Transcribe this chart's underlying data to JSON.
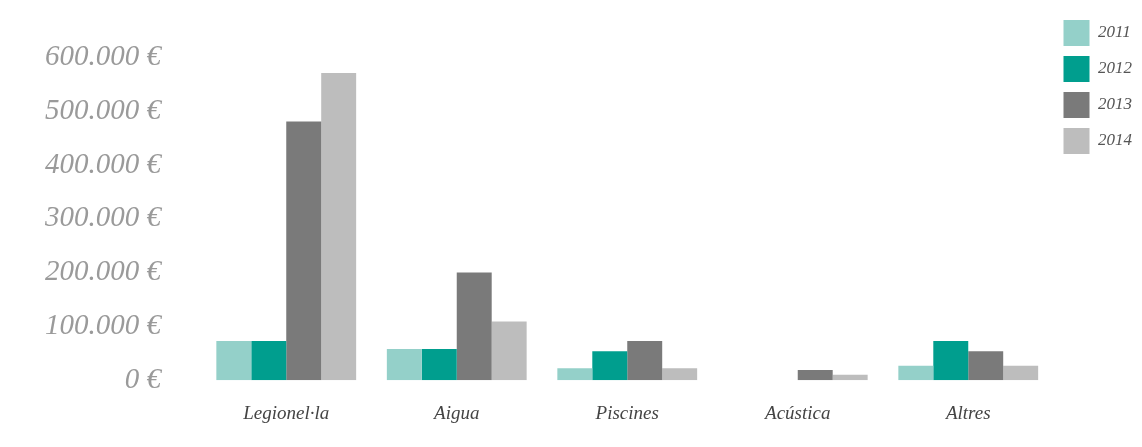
{
  "chart_data": {
    "type": "bar",
    "categories": [
      "Legionel·la",
      "Aigua",
      "Piscines",
      "Acústica",
      "Altres"
    ],
    "series": [
      {
        "name": "2011",
        "color": "#94d0c9",
        "values": [
          73000,
          58000,
          22000,
          0,
          27000
        ]
      },
      {
        "name": "2012",
        "color": "#009e8e",
        "values": [
          73000,
          58000,
          54000,
          0,
          73000
        ]
      },
      {
        "name": "2013",
        "color": "#7a7a7a",
        "values": [
          481000,
          200000,
          73000,
          19000,
          54000
        ]
      },
      {
        "name": "2014",
        "color": "#bdbdbd",
        "values": [
          571000,
          109000,
          22000,
          10000,
          27000
        ]
      }
    ],
    "ylim": [
      0,
      600000
    ],
    "yticks": [
      {
        "value": 0,
        "label": "0 €"
      },
      {
        "value": 100000,
        "label": "100.000 €"
      },
      {
        "value": 200000,
        "label": "200.000 €"
      },
      {
        "value": 300000,
        "label": "300.000 €"
      },
      {
        "value": 400000,
        "label": "400.000 €"
      },
      {
        "value": 500000,
        "label": "500.000 €"
      },
      {
        "value": 600000,
        "label": "600.000 €"
      }
    ],
    "grid": false,
    "legend": "top right"
  }
}
